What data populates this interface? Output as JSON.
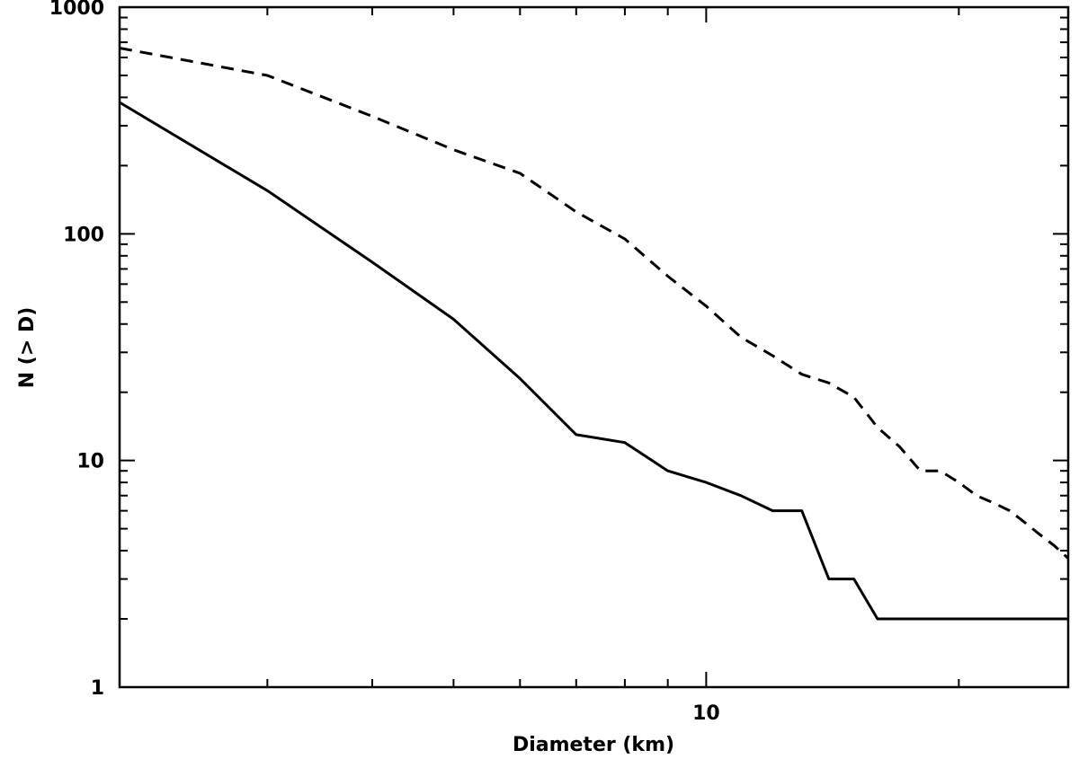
{
  "chart_data": {
    "type": "line",
    "title": "",
    "xlabel": "Diameter (km)",
    "ylabel": "N (> D)",
    "x_scale": "log",
    "y_scale": "log",
    "xlim": [
      2,
      27
    ],
    "ylim": [
      1,
      1000
    ],
    "grid": false,
    "x_tick_labels": [
      {
        "value": 10,
        "label": "10"
      }
    ],
    "y_tick_labels": [
      {
        "value": 1,
        "label": "1"
      },
      {
        "value": 10,
        "label": "10"
      },
      {
        "value": 100,
        "label": "100"
      },
      {
        "value": 1000,
        "label": "1000"
      }
    ],
    "series": [
      {
        "style": "dashed",
        "color": "#000000",
        "x": [
          2,
          3,
          4,
          5,
          6,
          7,
          8,
          9,
          10,
          11,
          12,
          13,
          14,
          15,
          16,
          17,
          18,
          19,
          20,
          21,
          22,
          23,
          24,
          25,
          26,
          27
        ],
        "y": [
          660,
          500,
          330,
          235,
          185,
          125,
          95,
          65,
          48,
          35,
          29,
          24,
          22,
          19,
          14,
          11.5,
          9,
          9,
          8,
          7,
          6.5,
          6,
          5.3,
          4.7,
          4.2,
          3.7
        ]
      },
      {
        "style": "solid",
        "color": "#000000",
        "x": [
          2,
          3,
          4,
          5,
          6,
          7,
          8,
          9,
          10,
          11,
          12,
          13,
          14,
          15,
          16,
          17,
          18,
          19,
          20,
          21,
          22,
          23,
          24,
          25,
          26,
          27
        ],
        "y": [
          380,
          155,
          75,
          42,
          23,
          13,
          12,
          9,
          8,
          7,
          6,
          6,
          3,
          3,
          2,
          2,
          2,
          2,
          2,
          2,
          2,
          2,
          2,
          2,
          2,
          2
        ]
      }
    ]
  }
}
